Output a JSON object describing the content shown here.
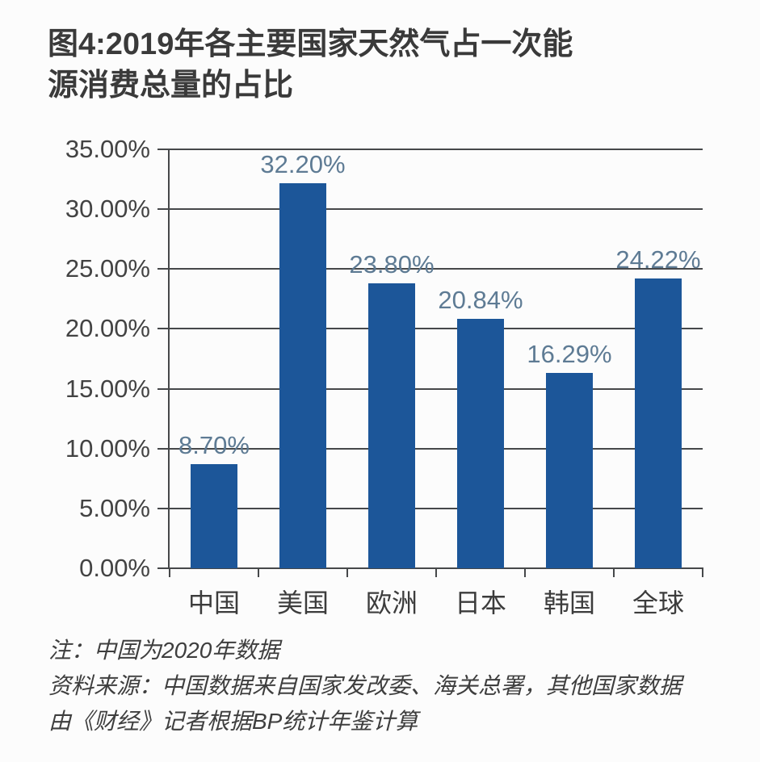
{
  "title": {
    "line1": "图4:2019年各主要国家天然气占一次能",
    "line2": "源消费总量的占比"
  },
  "chart_data": {
    "type": "bar",
    "title": "图4:2019年各主要国家天然气占一次能源消费总量的占比",
    "categories": [
      "中国",
      "美国",
      "欧洲",
      "日本",
      "韩国",
      "全球"
    ],
    "values": [
      8.7,
      32.2,
      23.8,
      20.84,
      16.29,
      24.22
    ],
    "data_labels": [
      "8.70%",
      "32.20%",
      "23.80%",
      "20.84%",
      "16.29%",
      "24.22%"
    ],
    "y_ticks": [
      "0.00%",
      "5.00%",
      "10.00%",
      "15.00%",
      "20.00%",
      "25.00%",
      "30.00%",
      "35.00%"
    ],
    "ylim": [
      0,
      35
    ],
    "xlabel": "",
    "ylabel": "",
    "grid": true,
    "legend": false,
    "bar_color": "#1c5699",
    "value_label_color": "#5e7b94",
    "axis_text_color": "#434343",
    "grid_color": "#46484a"
  },
  "notes": {
    "line1": "注：中国为2020年数据",
    "line2": "资料来源：中国数据来自国家发改委、海关总署，其他国家数据",
    "line3": "由《财经》记者根据BP统计年鉴计算"
  }
}
